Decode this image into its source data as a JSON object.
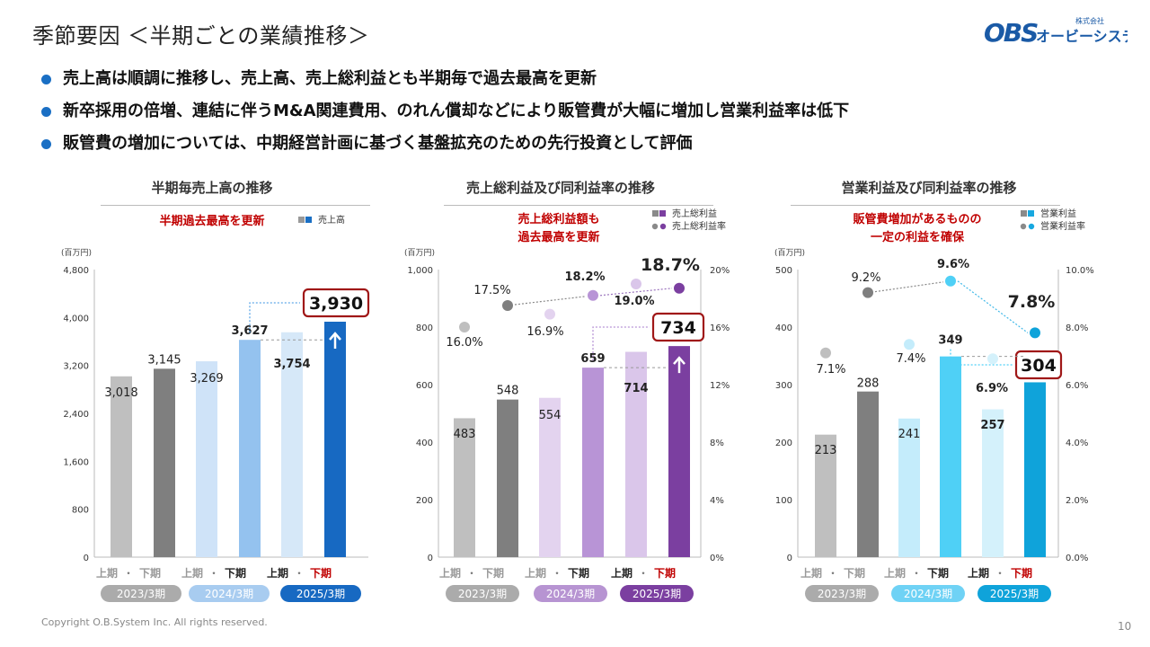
{
  "page": {
    "title": "季節要因 ＜半期ごとの業績推移＞",
    "company": {
      "small": "株式会社",
      "name": "オービーシステム",
      "mark": "OBS"
    },
    "bullets": [
      "売上高は順調に推移し、売上高、売上総利益とも半期毎で過去最高を更新",
      "新卒採用の倍増、連結に伴うM&A関連費用、のれん償却などにより販管費が大幅に増加し営業利益率は低下",
      "販管費の増加については、中期経営計画に基づく基盤拡充のための先行投資として評価"
    ],
    "footer": "Copyright O.B.System Inc. All rights reserved.",
    "page_number": "10"
  },
  "chart_data": [
    {
      "type": "bar",
      "title": "半期毎売上高の推移",
      "callout": [
        "半期過去最高を更新"
      ],
      "unit": "(百万円)",
      "legend": [
        {
          "label": "売上高",
          "colors": [
            "#999999",
            "#1a6fc4"
          ]
        }
      ],
      "ylim": [
        0,
        4800
      ],
      "yticks": [
        "0",
        "800",
        "1,600",
        "2,400",
        "3,200",
        "4,000",
        "4,800"
      ],
      "half_labels": {
        "first": "上期",
        "sep": "・",
        "second": "下期"
      },
      "years": [
        {
          "label": "2023/3期",
          "color": "#ababab"
        },
        {
          "label": "2024/3期",
          "color": "#a8ccf0"
        },
        {
          "label": "2025/3期",
          "color": "#1769c2"
        }
      ],
      "bars": [
        {
          "value": 3018,
          "label": "3,018",
          "color": "#bfbfbf"
        },
        {
          "value": 3145,
          "label": "3,145",
          "color": "#7f7f7f"
        },
        {
          "value": 3269,
          "label": "3,269",
          "color": "#cfe3f8"
        },
        {
          "value": 3627,
          "label": "3,627",
          "color": "#94c2ef"
        },
        {
          "value": 3754,
          "label": "3,754",
          "color": "#d6e8f8"
        },
        {
          "value": 3930,
          "label": "3,930",
          "color": "#1769c2"
        }
      ]
    },
    {
      "type": "bar+scatter",
      "title": "売上総利益及び同利益率の推移",
      "callout": [
        "売上総利益額も",
        "過去最高を更新"
      ],
      "unit": "(百万円)",
      "legend": [
        {
          "label": "売上総利益",
          "colors": [
            "#8a8a8a",
            "#7b3fa0"
          ]
        },
        {
          "label": "売上総利益率",
          "colors": [
            "#8a8a8a",
            "#7b3fa0"
          ]
        }
      ],
      "ylim": [
        0,
        1000
      ],
      "yticks": [
        "0",
        "200",
        "400",
        "600",
        "800",
        "1,000"
      ],
      "y2lim": [
        0,
        20
      ],
      "y2ticks": [
        "0%",
        "4%",
        "8%",
        "12%",
        "16%",
        "20%"
      ],
      "half_labels": {
        "first": "上期",
        "sep": "・",
        "second": "下期"
      },
      "years": [
        {
          "label": "2023/3期",
          "color": "#ababab"
        },
        {
          "label": "2024/3期",
          "color": "#b794d2"
        },
        {
          "label": "2025/3期",
          "color": "#7b3fa0"
        }
      ],
      "bars": [
        {
          "value": 483,
          "label": "483",
          "color": "#bfbfbf"
        },
        {
          "value": 548,
          "label": "548",
          "color": "#7f7f7f"
        },
        {
          "value": 554,
          "label": "554",
          "color": "#e3d3ef"
        },
        {
          "value": 659,
          "label": "659",
          "color": "#b894d6"
        },
        {
          "value": 714,
          "label": "714",
          "color": "#dac6ea"
        },
        {
          "value": 734,
          "label": "734",
          "color": "#7b3fa0"
        }
      ],
      "rates": [
        {
          "value": 16.0,
          "label": "16.0%",
          "color": "#bfbfbf"
        },
        {
          "value": 17.5,
          "label": "17.5%",
          "color": "#7f7f7f"
        },
        {
          "value": 16.9,
          "label": "16.9%",
          "color": "#e3d3ef"
        },
        {
          "value": 18.2,
          "label": "18.2%",
          "color": "#b894d6"
        },
        {
          "value": 19.0,
          "label": "19.0%",
          "color": "#dac6ea"
        },
        {
          "value": 18.7,
          "label": "18.7%",
          "color": "#7b3fa0"
        }
      ]
    },
    {
      "type": "bar+scatter",
      "title": "営業利益及び同利益率の推移",
      "callout": [
        "販管費増加があるものの",
        "一定の利益を確保"
      ],
      "unit": "(百万円)",
      "legend": [
        {
          "label": "営業利益",
          "colors": [
            "#8a8a8a",
            "#17a8e0"
          ]
        },
        {
          "label": "営業利益率",
          "colors": [
            "#8a8a8a",
            "#17a8e0"
          ]
        }
      ],
      "ylim": [
        0,
        500
      ],
      "yticks": [
        "0",
        "100",
        "200",
        "300",
        "400",
        "500"
      ],
      "y2lim": [
        0,
        10
      ],
      "y2ticks": [
        "0.0%",
        "2.0%",
        "4.0%",
        "6.0%",
        "8.0%",
        "10.0%"
      ],
      "half_labels": {
        "first": "上期",
        "sep": "・",
        "second": "下期"
      },
      "years": [
        {
          "label": "2023/3期",
          "color": "#ababab"
        },
        {
          "label": "2024/3期",
          "color": "#6fd2f5"
        },
        {
          "label": "2025/3期",
          "color": "#0fa3da"
        }
      ],
      "bars": [
        {
          "value": 213,
          "label": "213",
          "color": "#bfbfbf"
        },
        {
          "value": 288,
          "label": "288",
          "color": "#7f7f7f"
        },
        {
          "value": 241,
          "label": "241",
          "color": "#c4ecfb"
        },
        {
          "value": 349,
          "label": "349",
          "color": "#4fd0f6"
        },
        {
          "value": 257,
          "label": "257",
          "color": "#d4f1fb"
        },
        {
          "value": 304,
          "label": "304",
          "color": "#0fa3da"
        }
      ],
      "rates": [
        {
          "value": 7.1,
          "label": "7.1%",
          "color": "#bfbfbf"
        },
        {
          "value": 9.2,
          "label": "9.2%",
          "color": "#7f7f7f"
        },
        {
          "value": 7.4,
          "label": "7.4%",
          "color": "#c4ecfb"
        },
        {
          "value": 9.6,
          "label": "9.6%",
          "color": "#4fd0f6"
        },
        {
          "value": 6.9,
          "label": "6.9%",
          "color": "#d4f1fb"
        },
        {
          "value": 7.8,
          "label": "7.8%",
          "color": "#0fa3da"
        }
      ]
    }
  ]
}
